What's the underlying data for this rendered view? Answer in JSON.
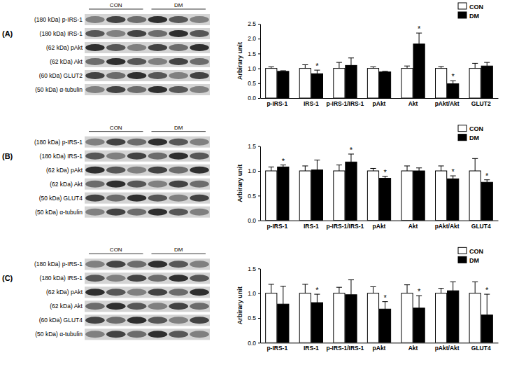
{
  "chart_data": [
    {
      "type": "bar",
      "title": "(A)",
      "blot_groups": [
        "CON",
        "DM"
      ],
      "blot_labels": [
        "(180 kDa) p-IRS-1",
        "(180 kDa) IRS-1",
        "(62 kDa)  pAkt",
        "(62 kDa)  Akt",
        "(60 kDa) GLUT2",
        "(50 kDa) α-tubulin"
      ],
      "y_label": "Arbirary unit",
      "categories": [
        "p-IRS-1",
        "IRS-1",
        "p-IRS-1/IRS-1",
        "pAkt",
        "Akt",
        "pAkt/Akt",
        "GLUT2"
      ],
      "series": [
        {
          "name": "CON",
          "color": "#ffffff",
          "values": [
            1.0,
            1.0,
            1.0,
            1.0,
            1.0,
            1.0,
            1.0
          ],
          "errors": [
            0.05,
            0.12,
            0.2,
            0.05,
            0.08,
            0.06,
            0.17
          ]
        },
        {
          "name": "DM",
          "color": "#000000",
          "values": [
            0.9,
            0.82,
            1.1,
            0.88,
            1.82,
            0.48,
            1.08
          ],
          "errors": [
            0.02,
            0.12,
            0.25,
            0.02,
            0.37,
            0.1,
            0.12
          ],
          "significance": [
            null,
            "*",
            null,
            null,
            "*",
            "*",
            null
          ]
        }
      ],
      "ylim": [
        0,
        2.5
      ],
      "yticks": [
        {
          "value": 0,
          "label": "0.0"
        },
        0.5,
        {
          "value": 1,
          "label": "1.0"
        },
        1.5,
        {
          "value": 2,
          "label": "2.0"
        },
        2.5
      ],
      "legend": "upper right",
      "grid": false
    },
    {
      "type": "bar",
      "title": "(B)",
      "blot_groups": [
        "CON",
        "DM"
      ],
      "blot_labels": [
        "(180 kDa) p-IRS-1",
        "(180 kDa) IRS-1",
        "(62 kDa) pAkt",
        "(62 kDa) Akt",
        "(50 kDa) GLUT4",
        "(50 kDa) α-tubulin"
      ],
      "y_label": "Arbirary unit",
      "categories": [
        "p-IRS-1",
        "IRS-1",
        "p-IRS-1/IRS-1",
        "pAkt",
        "Akt",
        "pAkt/Akt",
        "GLUT4"
      ],
      "series": [
        {
          "name": "CON",
          "color": "#ffffff",
          "values": [
            1.0,
            1.0,
            1.0,
            1.0,
            1.0,
            1.0,
            1.0
          ],
          "errors": [
            0.08,
            0.1,
            0.12,
            0.05,
            0.1,
            0.1,
            0.25
          ]
        },
        {
          "name": "DM",
          "color": "#000000",
          "values": [
            1.08,
            1.02,
            1.18,
            0.85,
            1.0,
            0.84,
            0.77
          ],
          "errors": [
            0.04,
            0.2,
            0.16,
            0.04,
            0.06,
            0.06,
            0.05
          ],
          "significance": [
            "*",
            null,
            "*",
            "*",
            null,
            "*",
            "*"
          ]
        }
      ],
      "ylim": [
        0,
        1.5
      ],
      "yticks": [
        {
          "value": 0,
          "label": "0.0"
        },
        0.5,
        {
          "value": 1,
          "label": "1.0"
        },
        1.5
      ],
      "legend": "upper right",
      "grid": false
    },
    {
      "type": "bar",
      "title": "(C)",
      "blot_groups": [
        "CON",
        "DM"
      ],
      "blot_labels": [
        "(180 kDa) p-IRS-1",
        "(180 kDa) IRS-1",
        "(62 kDa) pAkt",
        "(62 kDa) Akt",
        "(60 kDa) GLUT4",
        "(50 kDa) α-tubulin"
      ],
      "y_label": "Arbirary unit",
      "categories": [
        "p-IRS-1",
        "IRS-1",
        "p-IRS-1/IRS-1",
        "pAkt",
        "Akt",
        "pAkt/Akt",
        "GLUT4"
      ],
      "series": [
        {
          "name": "CON",
          "color": "#ffffff",
          "values": [
            1.0,
            1.0,
            1.0,
            1.0,
            1.0,
            1.0,
            1.0
          ],
          "errors": [
            0.18,
            0.18,
            0.12,
            0.13,
            0.17,
            0.1,
            0.23
          ]
        },
        {
          "name": "DM",
          "color": "#000000",
          "values": [
            0.78,
            0.81,
            0.97,
            0.68,
            0.7,
            1.05,
            0.56
          ],
          "errors": [
            0.36,
            0.17,
            0.3,
            0.15,
            0.25,
            0.18,
            0.42
          ],
          "significance": [
            null,
            "*",
            null,
            "*",
            "*",
            null,
            "*"
          ]
        }
      ],
      "ylim": [
        0,
        1.5
      ],
      "yticks": [
        {
          "value": 0,
          "label": "0.0"
        },
        0.5,
        {
          "value": 1,
          "label": "1.0"
        },
        1.5
      ],
      "legend": "upper right",
      "grid": false
    }
  ]
}
